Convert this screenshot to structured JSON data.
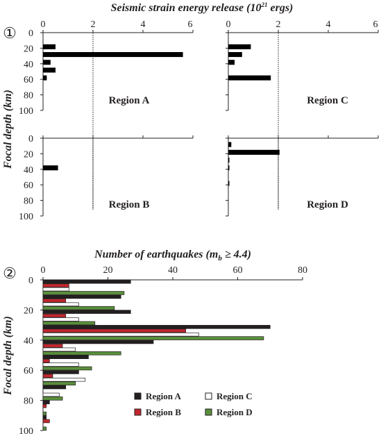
{
  "chart_data": [
    {
      "type": "bar",
      "title": "Seismic strain energy release (10^21 ergs)",
      "title_base": "Seismic strain energy release (10",
      "title_sup": "21",
      "title_tail": " ergs)",
      "ylabel": "Focal depth (km)",
      "panel_number": "①",
      "orientation": "horizontal",
      "xlim": [
        0,
        6
      ],
      "ylim": [
        0,
        100
      ],
      "x_ticks": [
        "0",
        "2",
        "4",
        "6"
      ],
      "y_ticks": [
        "0",
        "20",
        "40",
        "60",
        "80",
        "100"
      ],
      "reference_line_x": 2,
      "depth_bins": [
        0,
        10,
        20,
        30,
        40,
        50,
        60,
        70,
        80,
        90
      ],
      "bin_height": 5,
      "subplots": [
        {
          "name": "Region A",
          "values": [
            0,
            0.5,
            5.6,
            0.3,
            0.5,
            0.15,
            0,
            0,
            0,
            0
          ]
        },
        {
          "name": "Region C",
          "values": [
            0,
            0.9,
            0.55,
            0.25,
            0,
            1.7,
            0,
            0,
            0,
            0
          ]
        },
        {
          "name": "Region B",
          "values": [
            0,
            0,
            0,
            0.6,
            0,
            0,
            0,
            0,
            0,
            0
          ]
        },
        {
          "name": "Region D",
          "values": [
            0.12,
            2.05,
            0.03,
            0.03,
            0,
            0.03,
            0,
            0,
            0,
            0
          ]
        }
      ]
    },
    {
      "type": "bar",
      "title": "Number of earthquakes (m_b ≥ 4.4)",
      "title_base": "Number of earthquakes (m",
      "title_sub": "b",
      "title_tail": " ≥ 4.4)",
      "ylabel": "Focal depth (km)",
      "panel_number": "②",
      "orientation": "horizontal",
      "xlim": [
        0,
        80
      ],
      "ylim": [
        0,
        100
      ],
      "x_ticks": [
        "0",
        "20",
        "40",
        "60",
        "80"
      ],
      "y_ticks": [
        "0",
        "20",
        "40",
        "60",
        "80",
        "100"
      ],
      "depth_bins": [
        0,
        10,
        20,
        30,
        40,
        50,
        60,
        70,
        80,
        90,
        100
      ],
      "series": [
        {
          "name": "Region A",
          "color": "#231f20",
          "values": [
            27,
            24,
            27,
            70,
            34,
            14,
            11,
            7,
            2,
            1,
            0
          ]
        },
        {
          "name": "Region B",
          "color": "#c1272d",
          "values": [
            8,
            7,
            7,
            44,
            6,
            2,
            3,
            0,
            1,
            2,
            0
          ]
        },
        {
          "name": "Region C",
          "color": "#ffffff",
          "values": [
            8,
            11,
            11,
            48,
            10,
            11,
            13,
            5,
            0,
            0,
            0
          ]
        },
        {
          "name": "Region D",
          "color": "#5a8f3c",
          "values": [
            25,
            22,
            16,
            68,
            24,
            15,
            10,
            6,
            1,
            1,
            1
          ]
        }
      ]
    }
  ]
}
